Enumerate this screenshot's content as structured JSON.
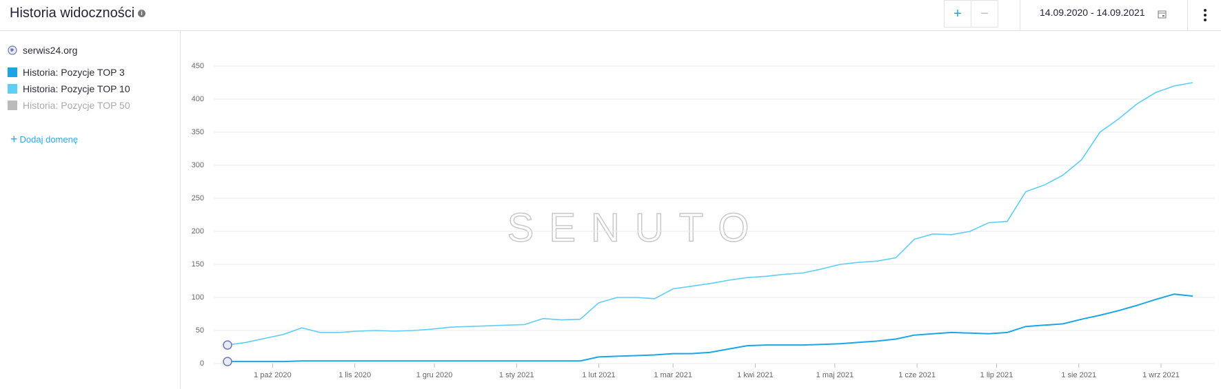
{
  "header": {
    "title": "Historia widoczności",
    "zoom_in": "+",
    "zoom_out": "−",
    "date_range": "14.09.2020 - 14.09.2021"
  },
  "sidebar": {
    "domain": "serwis24.org",
    "add_domain": "Dodaj domenę"
  },
  "chart_data": {
    "type": "line",
    "watermark": "SENUTO",
    "x": [
      "2020-09-14",
      "2020-09-21",
      "2020-09-28",
      "2020-10-05",
      "2020-10-12",
      "2020-10-19",
      "2020-10-26",
      "2020-11-02",
      "2020-11-09",
      "2020-11-16",
      "2020-11-23",
      "2020-11-30",
      "2020-12-07",
      "2020-12-14",
      "2020-12-21",
      "2020-12-28",
      "2021-01-04",
      "2021-01-11",
      "2021-01-18",
      "2021-01-25",
      "2021-02-01",
      "2021-02-08",
      "2021-02-15",
      "2021-02-22",
      "2021-03-01",
      "2021-03-08",
      "2021-03-15",
      "2021-03-22",
      "2021-03-29",
      "2021-04-05",
      "2021-04-12",
      "2021-04-19",
      "2021-04-26",
      "2021-05-03",
      "2021-05-10",
      "2021-05-17",
      "2021-05-24",
      "2021-05-31",
      "2021-06-07",
      "2021-06-14",
      "2021-06-21",
      "2021-06-28",
      "2021-07-05",
      "2021-07-12",
      "2021-07-19",
      "2021-07-26",
      "2021-08-02",
      "2021-08-09",
      "2021-08-16",
      "2021-08-23",
      "2021-08-30",
      "2021-09-06",
      "2021-09-13"
    ],
    "series": [
      {
        "name": "Historia: Pozycje TOP 3",
        "color": "#1aa6e6",
        "visible": true,
        "values": [
          3,
          3,
          3,
          3,
          4,
          4,
          4,
          4,
          4,
          4,
          4,
          4,
          4,
          4,
          4,
          4,
          4,
          4,
          4,
          4,
          10,
          11,
          12,
          13,
          15,
          15,
          17,
          22,
          27,
          28,
          28,
          28,
          29,
          30,
          32,
          34,
          37,
          43,
          45,
          47,
          46,
          45,
          47,
          56,
          58,
          60,
          67,
          73,
          80,
          88,
          97,
          105,
          102
        ]
      },
      {
        "name": "Historia: Pozycje TOP 10",
        "color": "#5fcdf6",
        "visible": true,
        "values": [
          28,
          32,
          38,
          44,
          54,
          47,
          47,
          49,
          50,
          49,
          50,
          52,
          55,
          56,
          57,
          58,
          59,
          68,
          66,
          67,
          92,
          100,
          100,
          98,
          113,
          117,
          121,
          126,
          130,
          132,
          135,
          137,
          143,
          150,
          153,
          155,
          160,
          188,
          196,
          195,
          200,
          213,
          215,
          260,
          270,
          285,
          308,
          350,
          370,
          393,
          410,
          420,
          425
        ]
      },
      {
        "name": "Historia: Pozycje TOP 50",
        "color": "#bbbbbb",
        "visible": false,
        "values": [
          null,
          null,
          null,
          null,
          null,
          null,
          null,
          null,
          null,
          null,
          null,
          null,
          null,
          null,
          null,
          null,
          null,
          null,
          null,
          null,
          null,
          null,
          null,
          null,
          null,
          null,
          null,
          null,
          null,
          null,
          null,
          null,
          null,
          null,
          null,
          null,
          null,
          null,
          null,
          null,
          null,
          null,
          null,
          null,
          null,
          null,
          null,
          null,
          null,
          null,
          null,
          null,
          null
        ]
      }
    ],
    "xlim": [
      "2020-09-14",
      "2021-09-14"
    ],
    "xticks": [
      {
        "value": "2020-10-01",
        "label": "1 paź 2020"
      },
      {
        "value": "2020-11-01",
        "label": "1 lis 2020"
      },
      {
        "value": "2020-12-01",
        "label": "1 gru 2020"
      },
      {
        "value": "2021-01-01",
        "label": "1 sty 2021"
      },
      {
        "value": "2021-02-01",
        "label": "1 lut 2021"
      },
      {
        "value": "2021-03-01",
        "label": "1 mar 2021"
      },
      {
        "value": "2021-04-01",
        "label": "1 kwi 2021"
      },
      {
        "value": "2021-05-01",
        "label": "1 maj 2021"
      },
      {
        "value": "2021-06-01",
        "label": "1 cze 2021"
      },
      {
        "value": "2021-07-01",
        "label": "1 lip 2021"
      },
      {
        "value": "2021-08-01",
        "label": "1 sie 2021"
      },
      {
        "value": "2021-09-01",
        "label": "1 wrz 2021"
      }
    ],
    "ylim": [
      0,
      450
    ],
    "yticks": [
      0,
      50,
      100,
      150,
      200,
      250,
      300,
      350,
      400,
      450
    ],
    "grid": true
  }
}
